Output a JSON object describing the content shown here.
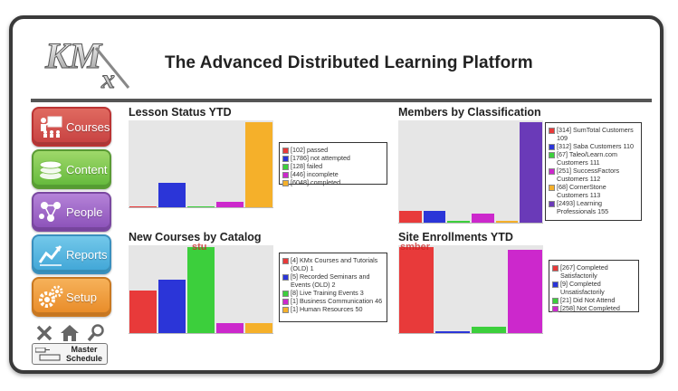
{
  "header": {
    "logo_text": "KMx",
    "title": "The Advanced Distributed Learning Platform"
  },
  "nav": {
    "courses": "Courses",
    "content": "Content",
    "people": "People",
    "reports": "Reports",
    "setup": "Setup",
    "master_schedule": "Master Schedule",
    "tool_icons": [
      "close-icon",
      "home-icon",
      "search-icon"
    ]
  },
  "panels": {
    "lesson_status": {
      "title": "Lesson Status YTD",
      "legend": [
        "[102] passed",
        "[1786] not attempted",
        "[128] failed",
        "[446] incomplete",
        "[6048] completed"
      ]
    },
    "members": {
      "title": "Members by Classification",
      "legend": [
        "[314] SumTotal Customers 109",
        "[312] Saba Customers 110",
        "[67] Taleo/Learn.com Customers 111",
        "[251] SuccessFactors Customers 112",
        "[68] CornerStone Customers 113",
        "[2493] Learning Professionals 155"
      ]
    },
    "new_courses": {
      "title": "New Courses by Catalog",
      "overlay": "stu",
      "legend": [
        "[4] KMx Courses and Tutorials (OLD) 1",
        "[5] Recorded Seminars and Events (OLD) 2",
        "[8] Live Training Events 3",
        "[1] Business Communication 46",
        "[1] Human Resources 50"
      ]
    },
    "site_enrollments": {
      "title": "Site Enrollments YTD",
      "overlay": "smber",
      "legend": [
        "[267] Completed Satisfactorily",
        "[9] Completed Unsatisfactorily",
        "[21] Did Not Attend",
        "[258] Not Completed"
      ]
    }
  },
  "colors": {
    "series": [
      "#e83a3a",
      "#2b35d8",
      "#3ccf3c",
      "#cc28cc",
      "#f5b02a",
      "#6a3ab8"
    ]
  },
  "chart_data": [
    {
      "type": "bar",
      "title": "Lesson Status YTD",
      "categories": [
        "passed",
        "not attempted",
        "failed",
        "incomplete",
        "completed"
      ],
      "values": [
        102,
        1786,
        128,
        446,
        6048
      ]
    },
    {
      "type": "bar",
      "title": "Members by Classification",
      "categories": [
        "SumTotal Customers 109",
        "Saba Customers 110",
        "Taleo/Learn.com Customers 111",
        "SuccessFactors Customers 112",
        "CornerStone Customers 113",
        "Learning Professionals 155"
      ],
      "values": [
        314,
        312,
        67,
        251,
        68,
        2493
      ]
    },
    {
      "type": "bar",
      "title": "New Courses by Catalog",
      "categories": [
        "KMx Courses and Tutorials (OLD) 1",
        "Recorded Seminars and Events (OLD) 2",
        "Live Training Events 3",
        "Business Communication 46",
        "Human Resources 50"
      ],
      "values": [
        4,
        5,
        8,
        1,
        1
      ]
    },
    {
      "type": "bar",
      "title": "Site Enrollments YTD",
      "categories": [
        "Completed Satisfactorily",
        "Completed Unsatisfactorily",
        "Did Not Attend",
        "Not Completed"
      ],
      "values": [
        267,
        9,
        21,
        258
      ]
    }
  ]
}
